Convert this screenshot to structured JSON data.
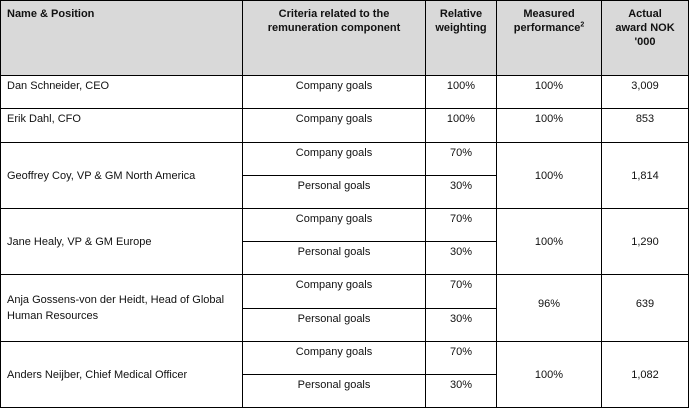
{
  "headers": {
    "name": "Name & Position",
    "criteria_1": "Criteria related to the",
    "criteria_2": "remuneration component",
    "weighting_1": "Relative",
    "weighting_2": "weighting",
    "measured_1": "Measured",
    "measured_2": "performance",
    "measured_sup": "2",
    "award_1": "Actual",
    "award_2": "award NOK",
    "award_3": "'000"
  },
  "rows": [
    {
      "name": "Dan Schneider, CEO",
      "criteria": [
        "Company goals"
      ],
      "weighting": [
        "100%"
      ],
      "performance": "100%",
      "award": "3,009"
    },
    {
      "name": "Erik Dahl, CFO",
      "criteria": [
        "Company goals"
      ],
      "weighting": [
        "100%"
      ],
      "performance": "100%",
      "award": "853"
    },
    {
      "name": "Geoffrey Coy, VP & GM North America",
      "criteria": [
        "Company goals",
        "Personal goals"
      ],
      "weighting": [
        "70%",
        "30%"
      ],
      "performance": "100%",
      "award": "1,814"
    },
    {
      "name": "Jane Healy, VP & GM Europe",
      "criteria": [
        "Company goals",
        "Personal goals"
      ],
      "weighting": [
        "70%",
        "30%"
      ],
      "performance": "100%",
      "award": "1,290"
    },
    {
      "name_1": "Anja Gossens-von der Heidt, Head of Global",
      "name_2": "Human Resources",
      "criteria": [
        "Company goals",
        "Personal goals"
      ],
      "weighting": [
        "70%",
        "30%"
      ],
      "performance": "96%",
      "award": "639"
    },
    {
      "name": "Anders Neijber, Chief Medical Officer",
      "criteria": [
        "Company goals",
        "Personal goals"
      ],
      "weighting": [
        "70%",
        "30%"
      ],
      "performance": "100%",
      "award": "1,082"
    }
  ]
}
